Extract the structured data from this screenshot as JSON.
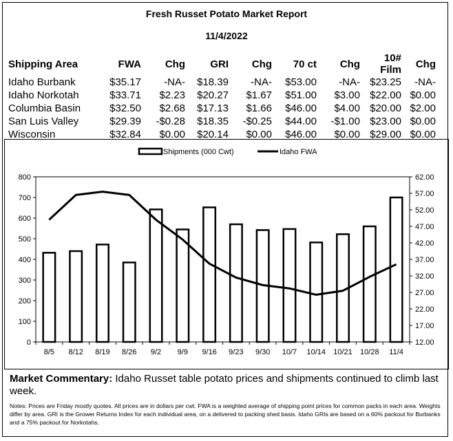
{
  "report": {
    "title": "Fresh Russet Potato Market Report",
    "date": "11/4/2022"
  },
  "table": {
    "headers": [
      "Shipping Area",
      "FWA",
      "Chg",
      "GRI",
      "Chg",
      "70 ct",
      "Chg",
      "10# Film",
      "Chg"
    ],
    "rows": [
      [
        "Idaho Burbank",
        "$35.17",
        "-NA-",
        "$18.39",
        "-NA-",
        "$53.00",
        "-NA-",
        "$23.25",
        "-NA-"
      ],
      [
        "Idaho Norkotah",
        "$33.71",
        "$2.23",
        "$20.27",
        "$1.67",
        "$51.00",
        "$3.00",
        "$22.00",
        "$0.00"
      ],
      [
        "Columbia Basin",
        "$32.50",
        "$2.68",
        "$17.13",
        "$1.66",
        "$46.00",
        "$4.00",
        "$20.00",
        "$2.00"
      ],
      [
        "San Luis Valley",
        "$29.39",
        "-$0.28",
        "$18.35",
        "-$0.25",
        "$44.00",
        "-$1.00",
        "$23.00",
        "$0.00"
      ],
      [
        "Wisconsin",
        "$32.84",
        "$0.00",
        "$20.14",
        "$0.00",
        "$46.00",
        "$0.00",
        "$29.00",
        "$0.00"
      ]
    ]
  },
  "chart_data": {
    "type": "bar",
    "categories": [
      "8/5",
      "8/12",
      "8/19",
      "8/26",
      "9/2",
      "9/9",
      "9/16",
      "9/23",
      "9/30",
      "10/7",
      "10/14",
      "10/21",
      "10/28",
      "11/4"
    ],
    "series": [
      {
        "name": "Shipments (000 Cwt)",
        "type": "bar",
        "axis": "left",
        "values": [
          432,
          440,
          472,
          385,
          642,
          545,
          652,
          570,
          542,
          547,
          482,
          522,
          560,
          700
        ]
      },
      {
        "name": "Idaho FWA",
        "type": "line",
        "axis": "right",
        "values": [
          49.0,
          56.5,
          57.5,
          56.5,
          49.0,
          43.0,
          35.7,
          31.5,
          29.2,
          28.2,
          26.3,
          27.5,
          31.7,
          35.5
        ]
      }
    ],
    "y_left": {
      "lim": [
        0,
        800
      ],
      "ticks": [
        "0",
        "100",
        "200",
        "300",
        "400",
        "500",
        "600",
        "700",
        "800"
      ]
    },
    "y_right": {
      "lim": [
        12,
        62
      ],
      "ticks": [
        "12.00",
        "17.00",
        "22.00",
        "27.00",
        "32.00",
        "37.00",
        "42.00",
        "47.00",
        "52.00",
        "57.00",
        "62.00"
      ]
    },
    "legend_position": "top-center",
    "grid": false,
    "colors": {
      "bar_fill": "#ffffff",
      "bar_stroke": "#000000",
      "line": "#000000"
    }
  },
  "commentary": {
    "label": "Market Commentary:",
    "text": " Idaho Russet table potato prices and shipments continued to climb last week."
  },
  "notes": "Notes: Prices are Friday mostly quotes. All prices are in dollars per cwt. FWA is a weighted average of shipping point prices for  common packs in each area. Weights differ by area. GRI is the Grower Returns Index for each individual area, on a delivered to packing shed basis. Idaho GRIs are based on a 60% packout for Burbanks and a 75% packout for Norkotahs."
}
